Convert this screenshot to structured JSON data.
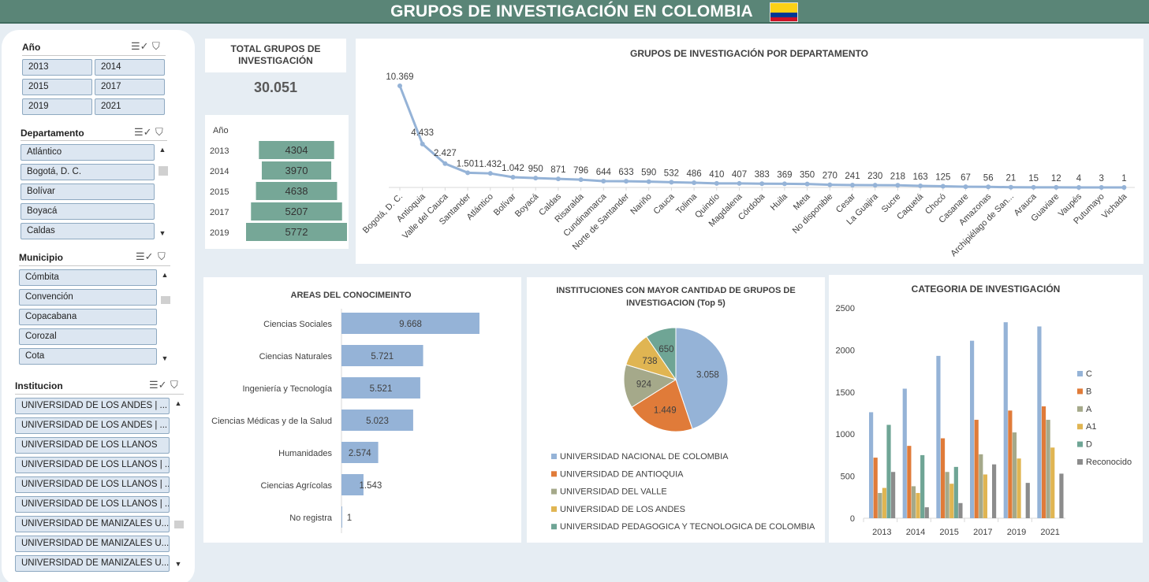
{
  "header": {
    "title": "GRUPOS DE INVESTIGACIÓN EN COLOMBIA",
    "flag_colors": [
      "#fcd116",
      "#003893",
      "#ce1126"
    ]
  },
  "colors": {
    "header_bg": "#5a8577",
    "bar_blue": "#95b3d7",
    "funnel_green": "#76a797",
    "line_blue": "#95b3d7"
  },
  "slicers": {
    "year": {
      "title": "Año",
      "items": [
        "2013",
        "2014",
        "2015",
        "2017",
        "2019",
        "2021"
      ]
    },
    "department": {
      "title": "Departamento",
      "items": [
        "Atlántico",
        "Bogotá, D. C.",
        "Bolívar",
        "Boyacá",
        "Caldas"
      ]
    },
    "municipality": {
      "title": "Municipio",
      "items": [
        "Cómbita",
        "Convención",
        "Copacabana",
        "Corozal",
        "Cota"
      ]
    },
    "institution": {
      "title": "Institucion",
      "items": [
        "UNIVERSIDAD DE LOS ANDES | ...",
        "UNIVERSIDAD DE LOS ANDES | ...",
        "UNIVERSIDAD DE LOS LLANOS",
        "UNIVERSIDAD DE LOS LLANOS | ...",
        "UNIVERSIDAD DE LOS LLANOS | ...",
        "UNIVERSIDAD DE LOS LLANOS | ...",
        "UNIVERSIDAD DE MANIZALES U...",
        "UNIVERSIDAD DE MANIZALES U...",
        "UNIVERSIDAD DE MANIZALES U..."
      ]
    }
  },
  "total": {
    "title_line1": "TOTAL GRUPOS DE",
    "title_line2": "INVESTIGACIÓN",
    "value": "30.051"
  },
  "chart_data": [
    {
      "type": "bar",
      "subtype": "funnel",
      "axis_title": "Año",
      "categories": [
        "2013",
        "2014",
        "2015",
        "2017",
        "2019"
      ],
      "values": [
        4304,
        3970,
        4638,
        5207,
        5772
      ],
      "labels": [
        "4304",
        "3970",
        "4638",
        "5207",
        "5772"
      ],
      "color": "#76a797"
    },
    {
      "type": "line",
      "title": "GRUPOS DE INVESTIGACIÓN POR DEPARTAMENTO",
      "categories": [
        "Bogotá, D. C.",
        "Antioquia",
        "Valle del Cauca",
        "Santander",
        "Atlántico",
        "Bolívar",
        "Boyacá",
        "Caldas",
        "Risaralda",
        "Cundinamarca",
        "Norte de Santander",
        "Nariño",
        "Cauca",
        "Tolima",
        "Quindío",
        "Magdalena",
        "Córdoba",
        "Huila",
        "Meta",
        "No disponible",
        "Cesar",
        "La Guajira",
        "Sucre",
        "Caquetá",
        "Chocó",
        "Casanare",
        "Amazonas",
        "Archipiélago de San...",
        "Arauca",
        "Guaviare",
        "Vaupés",
        "Putumayo",
        "Vichada"
      ],
      "values": [
        10369,
        4433,
        2427,
        1501,
        1432,
        1042,
        950,
        871,
        796,
        644,
        633,
        590,
        532,
        486,
        410,
        407,
        383,
        369,
        350,
        270,
        241,
        230,
        218,
        163,
        125,
        67,
        56,
        21,
        15,
        12,
        4,
        3,
        1
      ],
      "labels": [
        "10.369",
        "4.433",
        "2.427",
        "1.501",
        "1.432",
        "1.042",
        "950",
        "871",
        "796",
        "644",
        "633",
        "590",
        "532",
        "486",
        "410",
        "407",
        "383",
        "369",
        "350",
        "270",
        "241",
        "230",
        "218",
        "163",
        "125",
        "67",
        "56",
        "21",
        "15",
        "12",
        "4",
        "3",
        "1"
      ],
      "ylim": [
        0,
        11000
      ],
      "color": "#95b3d7"
    },
    {
      "type": "bar",
      "orientation": "horizontal",
      "title": "AREAS DEL CONOCIMEINTO",
      "categories": [
        "Ciencias Sociales",
        "Ciencias Naturales",
        "Ingeniería y Tecnología",
        "Ciencias Médicas y de la Salud",
        "Humanidades",
        "Ciencias Agrícolas",
        "No registra"
      ],
      "values": [
        9668,
        5721,
        5521,
        5023,
        2574,
        1543,
        1
      ],
      "labels": [
        "9.668",
        "5.721",
        "5.521",
        "5.023",
        "2.574",
        "1.543",
        "1"
      ],
      "xlim": [
        0,
        11000
      ],
      "color": "#95b3d7"
    },
    {
      "type": "pie",
      "title_line1": "INSTITUCIONES CON MAYOR CANTIDAD DE GRUPOS DE",
      "title_line2": "INVESTIGACION (Top 5)",
      "categories": [
        "UNIVERSIDAD NACIONAL DE COLOMBIA",
        "UNIVERSIDAD DE ANTIOQUIA",
        "UNIVERSIDAD DEL VALLE",
        "UNIVERSIDAD DE LOS ANDES",
        "UNIVERSIDAD PEDAGOGICA Y TECNOLOGICA DE COLOMBIA"
      ],
      "values": [
        3058,
        1449,
        924,
        738,
        650
      ],
      "labels": [
        "3.058",
        "1.449",
        "924",
        "738",
        "650"
      ],
      "colors": [
        "#95b3d7",
        "#e07b39",
        "#a5a98a",
        "#e0b552",
        "#6fa595"
      ],
      "legend": "bottom"
    },
    {
      "type": "bar",
      "title": "CATEGORIA DE INVESTIGACIÓN",
      "categories": [
        "2013",
        "2014",
        "2015",
        "2017",
        "2019",
        "2021"
      ],
      "ylim": [
        0,
        2500
      ],
      "yticks": [
        "0",
        "500",
        "1000",
        "1500",
        "2000",
        "2500"
      ],
      "legend": "right",
      "series": [
        {
          "name": "C",
          "color": "#95b3d7",
          "values": [
            1260,
            1540,
            1930,
            2110,
            2330,
            2280
          ]
        },
        {
          "name": "B",
          "color": "#e07b39",
          "values": [
            720,
            860,
            950,
            1170,
            1280,
            1330
          ]
        },
        {
          "name": "A",
          "color": "#a5a98a",
          "values": [
            300,
            380,
            550,
            760,
            1020,
            1170
          ]
        },
        {
          "name": "A1",
          "color": "#e0b552",
          "values": [
            360,
            300,
            410,
            520,
            710,
            840
          ]
        },
        {
          "name": "D",
          "color": "#6fa595",
          "values": [
            1110,
            750,
            610,
            0,
            0,
            0
          ]
        },
        {
          "name": "Reconocido",
          "color": "#8c8c8c",
          "values": [
            550,
            130,
            180,
            640,
            420,
            530
          ]
        }
      ]
    }
  ]
}
